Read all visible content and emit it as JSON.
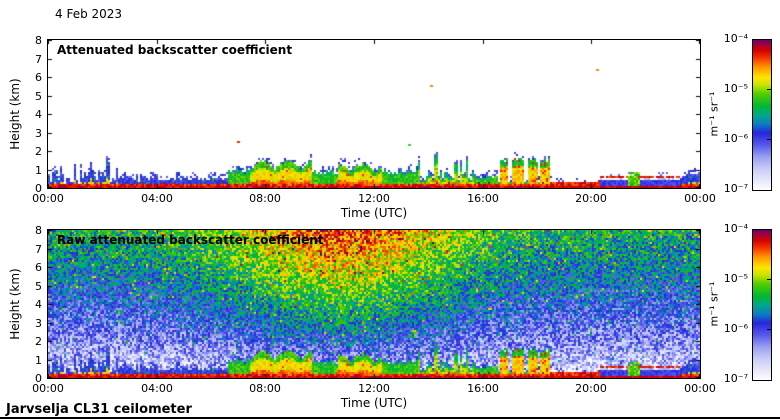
{
  "page": {
    "date_label": "4 Feb 2023",
    "footer": "Jarvselja CL31 ceilometer",
    "background": "#ffffff",
    "border_color": "#000000"
  },
  "axis": {
    "x_label": "Time (UTC)",
    "y_label": "Height (km)",
    "x_ticks": [
      "00:00",
      "04:00",
      "08:00",
      "12:00",
      "16:00",
      "20:00",
      "00:00"
    ],
    "y_ticks": [
      "8",
      "7",
      "6",
      "5",
      "4",
      "3",
      "2",
      "1",
      "0"
    ]
  },
  "colorbar": {
    "unit": "m⁻¹ sr⁻¹",
    "ticks": [
      "10⁻⁴",
      "10⁻⁵",
      "10⁻⁶",
      "10⁻⁷"
    ]
  },
  "panels": [
    {
      "title": "Attenuated backscatter coefficient"
    },
    {
      "title": "Raw attenuated backscatter coefficient"
    }
  ],
  "chart_data": [
    {
      "type": "heatmap",
      "title": "Attenuated backscatter coefficient",
      "xlabel": "Time (UTC)",
      "ylabel": "Height (km)",
      "x_range_hours": [
        0,
        24
      ],
      "y_range_km": [
        0,
        8
      ],
      "x_tick_labels": [
        "00:00",
        "04:00",
        "08:00",
        "12:00",
        "16:00",
        "20:00",
        "00:00"
      ],
      "y_tick_values": [
        0,
        1,
        2,
        3,
        4,
        5,
        6,
        7,
        8
      ],
      "colorbar": {
        "scale": "log",
        "min": 1e-07,
        "max": 0.0001,
        "tick_labels": [
          "10⁻⁴",
          "10⁻⁵",
          "10⁻⁶",
          "10⁻⁷"
        ],
        "unit": "m⁻¹ sr⁻¹",
        "position": "right"
      },
      "colormap_stops": [
        [
          0.0,
          "#ffffff"
        ],
        [
          0.06,
          "#e9e9fb"
        ],
        [
          0.14,
          "#c9ccf7"
        ],
        [
          0.22,
          "#9aa0f1"
        ],
        [
          0.3,
          "#5558ea"
        ],
        [
          0.38,
          "#2626dc"
        ],
        [
          0.44,
          "#0b7ec2"
        ],
        [
          0.5,
          "#00a88a"
        ],
        [
          0.56,
          "#00b830"
        ],
        [
          0.64,
          "#52cc00"
        ],
        [
          0.7,
          "#c8e400"
        ],
        [
          0.75,
          "#ffe400"
        ],
        [
          0.82,
          "#ff9500"
        ],
        [
          0.88,
          "#f53500"
        ],
        [
          0.93,
          "#d40000"
        ],
        [
          0.97,
          "#a3003c"
        ],
        [
          1.0,
          "#6a0070"
        ]
      ],
      "background": "white above boundary layer",
      "boundary_layer_km": [
        {
          "t": [
            0.0,
            1.2
          ],
          "top": 0.6,
          "style": "spiky-blue"
        },
        {
          "t": [
            1.2,
            2.6
          ],
          "top": 1.0,
          "style": "spiky-blue"
        },
        {
          "t": [
            2.6,
            6.6
          ],
          "top": 0.42,
          "style": "flat-blue"
        },
        {
          "t": [
            6.6,
            7.4
          ],
          "top": 0.85,
          "style": "plume-green"
        },
        {
          "t": [
            7.4,
            9.7
          ],
          "top": 1.2,
          "style": "plume-yellow"
        },
        {
          "t": [
            9.7,
            10.7
          ],
          "top": 0.75,
          "style": "plume-green"
        },
        {
          "t": [
            10.7,
            12.3
          ],
          "top": 1.05,
          "style": "plume-yellow"
        },
        {
          "t": [
            12.3,
            13.6
          ],
          "top": 0.8,
          "style": "plume-green"
        },
        {
          "t": [
            13.6,
            15.7
          ],
          "top": 1.55,
          "style": "spike-columns"
        },
        {
          "t": [
            15.7,
            16.6
          ],
          "top": 0.55,
          "style": "plume-green"
        },
        {
          "t": [
            16.6,
            18.5
          ],
          "top": 1.5,
          "style": "block-columns"
        },
        {
          "t": [
            18.5,
            20.3
          ],
          "top": 1.0,
          "style": "thin-layers"
        },
        {
          "t": [
            20.3,
            23.3
          ],
          "top": 0.58,
          "style": "lifted-red-layer"
        },
        {
          "t": [
            23.3,
            24.0
          ],
          "top": 0.7,
          "style": "flat-blue"
        }
      ],
      "specks": [
        {
          "t": 7.0,
          "h": 2.5,
          "color": "#e03000"
        },
        {
          "t": 13.3,
          "h": 2.35,
          "color": "#40c840"
        },
        {
          "t": 14.1,
          "h": 5.5,
          "color": "#ff8800"
        },
        {
          "t": 20.2,
          "h": 6.4,
          "color": "#ff8800"
        }
      ]
    },
    {
      "type": "heatmap",
      "title": "Raw attenuated backscatter coefficient",
      "xlabel": "Time (UTC)",
      "ylabel": "Height (km)",
      "x_range_hours": [
        0,
        24
      ],
      "y_range_km": [
        0,
        8
      ],
      "x_tick_labels": [
        "00:00",
        "04:00",
        "08:00",
        "12:00",
        "16:00",
        "20:00",
        "00:00"
      ],
      "y_tick_values": [
        0,
        1,
        2,
        3,
        4,
        5,
        6,
        7,
        8
      ],
      "colorbar": {
        "scale": "log",
        "min": 1e-07,
        "max": 0.0001,
        "tick_labels": [
          "10⁻⁴",
          "10⁻⁵",
          "10⁻⁶",
          "10⁻⁷"
        ],
        "unit": "m⁻¹ sr⁻¹",
        "position": "right"
      },
      "noise": {
        "description": "solar background speckle, strongest aloft around midday",
        "peak_hour": 10.8,
        "sigma_hours": 4.4,
        "base_amp": 0.54,
        "day_amp": 0.34,
        "height_power": 0.62,
        "jitter": 0.3,
        "fleck_prob": 0.045,
        "fleck_boost": 0.2
      },
      "boundary_layer_km": [
        {
          "t": [
            0.0,
            1.2
          ],
          "top": 0.6,
          "style": "spiky-blue"
        },
        {
          "t": [
            1.2,
            2.6
          ],
          "top": 1.0,
          "style": "spiky-blue"
        },
        {
          "t": [
            2.6,
            6.6
          ],
          "top": 0.42,
          "style": "flat-blue"
        },
        {
          "t": [
            6.6,
            7.4
          ],
          "top": 0.85,
          "style": "plume-green"
        },
        {
          "t": [
            7.4,
            9.7
          ],
          "top": 1.2,
          "style": "plume-yellow"
        },
        {
          "t": [
            9.7,
            10.7
          ],
          "top": 0.75,
          "style": "plume-green"
        },
        {
          "t": [
            10.7,
            12.3
          ],
          "top": 1.05,
          "style": "plume-yellow"
        },
        {
          "t": [
            12.3,
            13.6
          ],
          "top": 0.8,
          "style": "plume-green"
        },
        {
          "t": [
            13.6,
            15.7
          ],
          "top": 1.55,
          "style": "spike-columns"
        },
        {
          "t": [
            15.7,
            16.6
          ],
          "top": 0.55,
          "style": "plume-green"
        },
        {
          "t": [
            16.6,
            18.5
          ],
          "top": 1.5,
          "style": "block-columns"
        },
        {
          "t": [
            18.5,
            20.3
          ],
          "top": 1.0,
          "style": "thin-layers"
        },
        {
          "t": [
            20.3,
            23.3
          ],
          "top": 0.58,
          "style": "lifted-red-layer"
        },
        {
          "t": [
            23.3,
            24.0
          ],
          "top": 0.7,
          "style": "flat-blue"
        }
      ]
    }
  ]
}
